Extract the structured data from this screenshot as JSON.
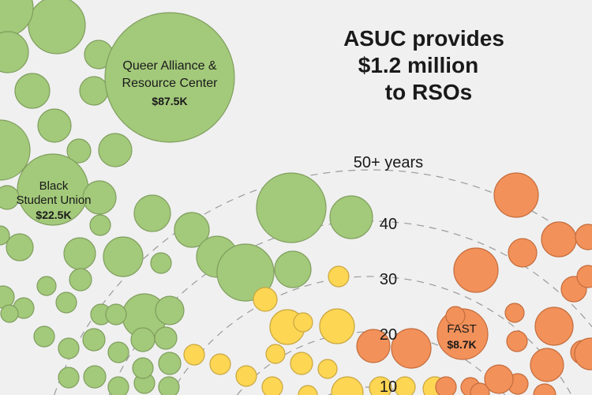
{
  "chart_data": {
    "type": "bubble",
    "title": [
      "ASUC provides",
      "$1.2 million",
      "to RSOs"
    ],
    "ring_labels": [
      "50+ years",
      "40",
      "30",
      "20",
      "10"
    ],
    "ring_values": [
      50,
      40,
      30,
      20,
      10
    ],
    "colors": {
      "green": "#a3c97a",
      "green_stroke": "#7f9e5e",
      "yellow": "#fdd654",
      "yellow_stroke": "#c9a640",
      "orange": "#f2915a",
      "orange_stroke": "#c46c3c",
      "ring": "#9a9a9a",
      "background": "#f0f0f0"
    },
    "labeled_bubbles": [
      {
        "name": "Queer Alliance & Resource Center",
        "lines": [
          "Queer Alliance &",
          "Resource Center"
        ],
        "amount": "$87.5K",
        "group": "green"
      },
      {
        "name": "Black Student Union",
        "lines": [
          "Black",
          "Student Union"
        ],
        "amount": "$22.5K",
        "group": "green"
      },
      {
        "name": "FAST",
        "lines": [
          "FAST"
        ],
        "amount": "$8.7K",
        "group": "orange"
      }
    ]
  }
}
